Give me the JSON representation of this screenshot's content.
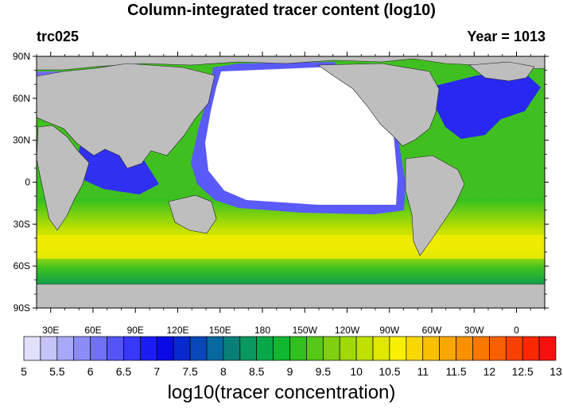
{
  "title": "Column-integrated tracer content (log10)",
  "left_label": "trc025",
  "right_label": "Year = 1013",
  "map": {
    "lat_labels": [
      "90N",
      "60N",
      "30N",
      "0",
      "30S",
      "60S",
      "90S"
    ],
    "lat_values": [
      90,
      60,
      30,
      0,
      -30,
      -60,
      -90
    ],
    "lon_labels": [
      "30E",
      "60E",
      "90E",
      "120E",
      "150E",
      "180",
      "150W",
      "120W",
      "90W",
      "60W",
      "30W",
      "0"
    ],
    "lon_values": [
      30,
      60,
      90,
      120,
      150,
      180,
      210,
      240,
      270,
      300,
      330,
      360
    ],
    "lon_range": [
      20,
      380
    ],
    "lat_range": [
      -90,
      90
    ],
    "land_color": "#bebebe",
    "missing_color": "#ffffff"
  },
  "colorbar": {
    "title": "log10(tracer concentration)",
    "tick_labels": [
      "5",
      "5.5",
      "6",
      "6.5",
      "7",
      "7.5",
      "8",
      "8.5",
      "9",
      "9.5",
      "10",
      "10.5",
      "11",
      "11.5",
      "12",
      "12.5",
      "13"
    ],
    "colors": [
      "#e0e0f8",
      "#c4c4f8",
      "#a8a8f8",
      "#8c8cf8",
      "#7070f8",
      "#5454f8",
      "#3838f8",
      "#1c1cf4",
      "#0a0ae8",
      "#0828d0",
      "#0848b8",
      "#0868a0",
      "#088078",
      "#089860",
      "#08a848",
      "#10b830",
      "#30c020",
      "#58c818",
      "#80d010",
      "#a0d808",
      "#c0e000",
      "#e0e800",
      "#f8f000",
      "#f8d800",
      "#f8c000",
      "#f8a800",
      "#f89000",
      "#f87800",
      "#f86000",
      "#f84000",
      "#f82800",
      "#f81010"
    ]
  }
}
